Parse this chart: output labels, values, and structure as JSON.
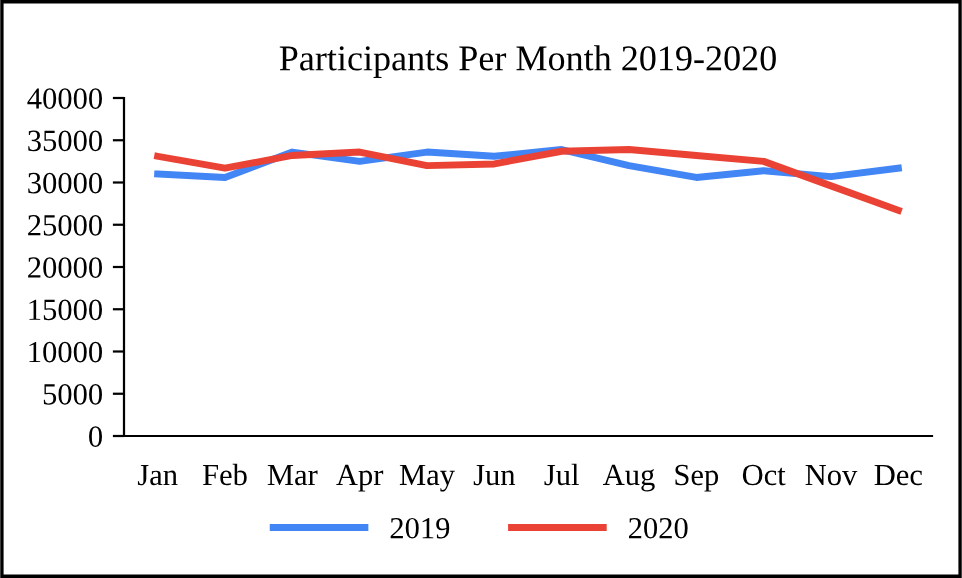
{
  "chart_data": {
    "type": "line",
    "title": "Participants Per Month 2019-2020",
    "categories": [
      "Jan",
      "Feb",
      "Mar",
      "Apr",
      "May",
      "Jun",
      "Jul",
      "Aug",
      "Sep",
      "Oct",
      "Nov",
      "Dec"
    ],
    "series": [
      {
        "name": "2019",
        "color": "#4285f4",
        "values": [
          31000,
          30600,
          33600,
          32500,
          33600,
          33100,
          33900,
          32000,
          30600,
          31400,
          30700,
          31700
        ]
      },
      {
        "name": "2020",
        "color": "#ea4335",
        "values": [
          33100,
          31700,
          33200,
          33600,
          32000,
          32200,
          33700,
          33900,
          33200,
          32500,
          29600,
          26700
        ]
      }
    ],
    "ylim": [
      0,
      40000
    ],
    "yticks": [
      0,
      5000,
      10000,
      15000,
      20000,
      25000,
      30000,
      35000,
      40000
    ],
    "grid": false,
    "legend": "bottom",
    "marker": "none",
    "line_style": "solid"
  }
}
